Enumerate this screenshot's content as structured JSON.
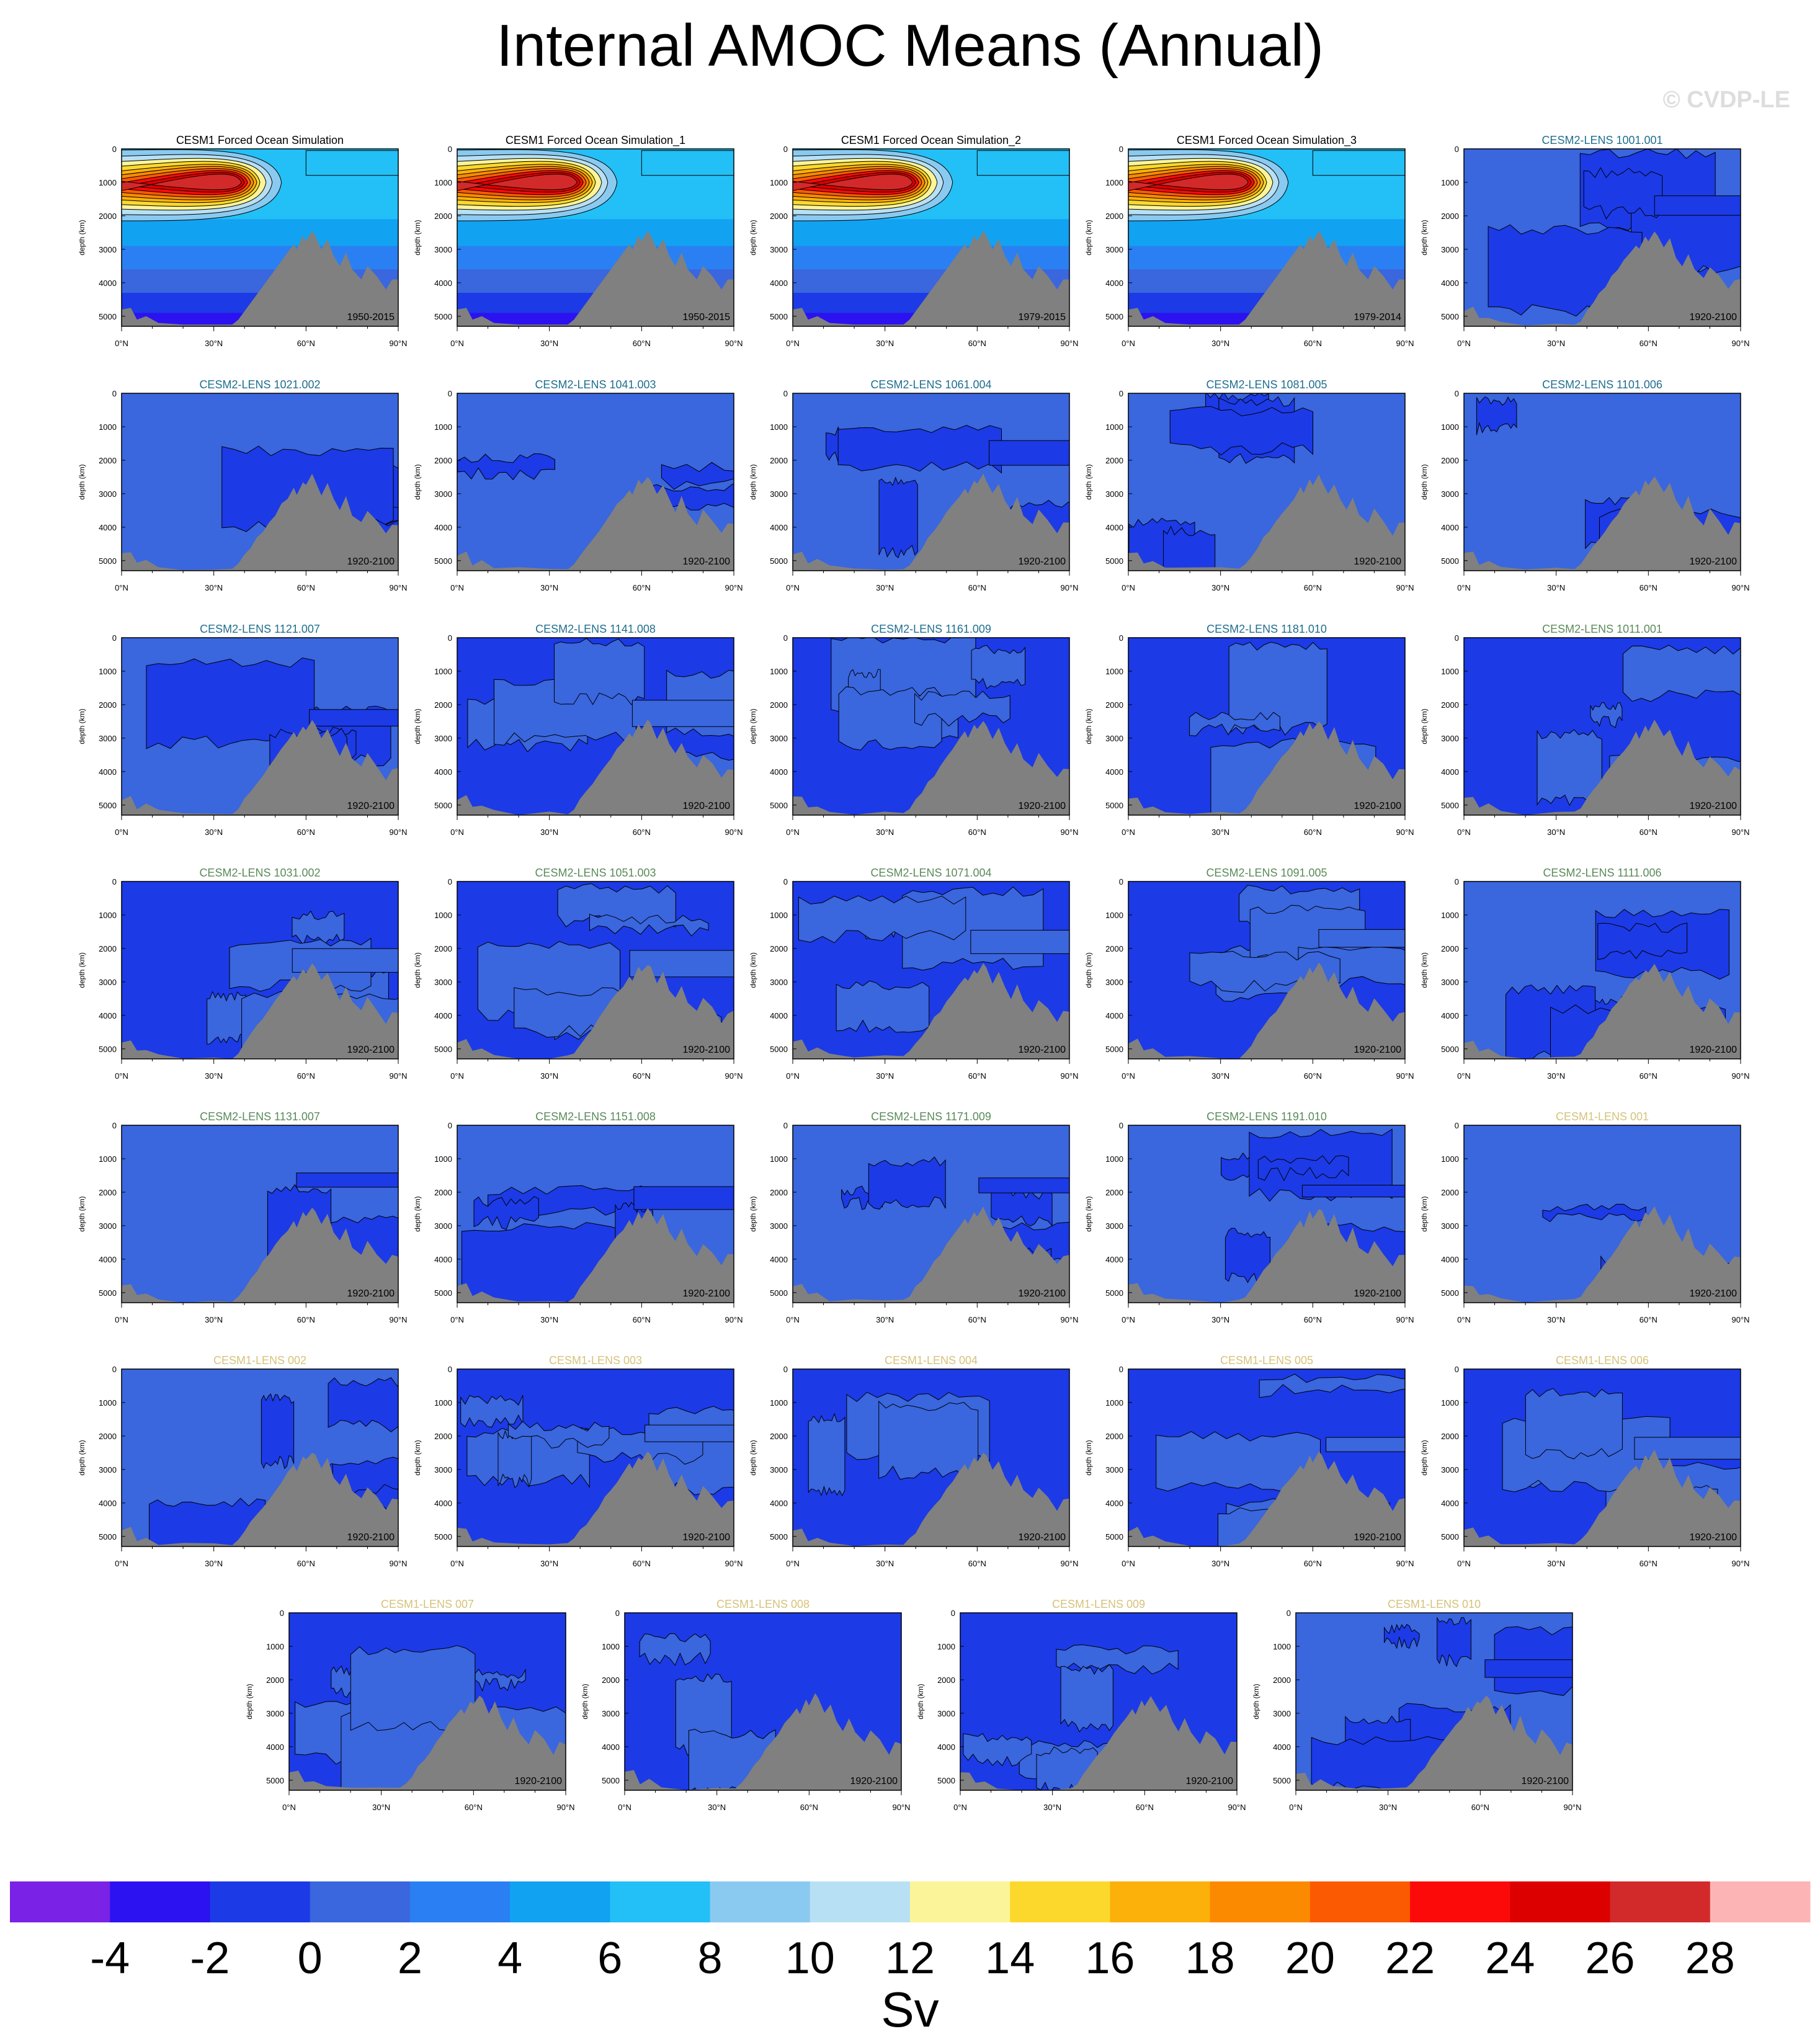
{
  "page": {
    "title": "Internal AMOC Means (Annual)",
    "watermark": "© CVDP-LE"
  },
  "colors": {
    "land": "#808080",
    "forced_title": "#000000",
    "cesm2_first": "#1f6e8e",
    "cesm2_second": "#5a8a5a",
    "cesm1_lens": "#d6c27a"
  },
  "chart_data": {
    "type": "heatmap",
    "axes": {
      "x_ticks": [
        "0°N",
        "30°N",
        "60°N",
        "90°N"
      ],
      "x_range": [
        0,
        90
      ],
      "y_ticks": [
        "0",
        "1000",
        "2000",
        "3000",
        "4000",
        "5000"
      ],
      "y_range": [
        0,
        5300
      ],
      "ylabel": "depth (km)"
    },
    "colorbar": {
      "unit": "Sv",
      "labels": [
        "-4",
        "-2",
        "0",
        "2",
        "4",
        "6",
        "8",
        "10",
        "12",
        "14",
        "16",
        "18",
        "20",
        "22",
        "24",
        "26",
        "28"
      ],
      "colors": [
        "#7a22e6",
        "#2c12f0",
        "#1c3ae6",
        "#3a66de",
        "#2a80f2",
        "#12a2f2",
        "#22c0f6",
        "#8acaf0",
        "#b8e0f4",
        "#fcf498",
        "#fcd82c",
        "#fcb00a",
        "#fc8a00",
        "#fc5a02",
        "#fc0a0a",
        "#dc0000",
        "#d22a2a",
        "#fcb4b4"
      ]
    },
    "panels": [
      {
        "title": "CESM1 Forced Ocean Simulation",
        "period": "1950-2015",
        "group": "forced"
      },
      {
        "title": "CESM1 Forced Ocean Simulation_1",
        "period": "1950-2015",
        "group": "forced"
      },
      {
        "title": "CESM1 Forced Ocean Simulation_2",
        "period": "1979-2015",
        "group": "forced"
      },
      {
        "title": "CESM1 Forced Ocean Simulation_3",
        "period": "1979-2014",
        "group": "forced"
      },
      {
        "title": "CESM2-LENS 1001.001",
        "period": "1920-2100",
        "group": "cesm2_first"
      },
      {
        "title": "CESM2-LENS 1021.002",
        "period": "1920-2100",
        "group": "cesm2_first"
      },
      {
        "title": "CESM2-LENS 1041.003",
        "period": "1920-2100",
        "group": "cesm2_first"
      },
      {
        "title": "CESM2-LENS 1061.004",
        "period": "1920-2100",
        "group": "cesm2_first"
      },
      {
        "title": "CESM2-LENS 1081.005",
        "period": "1920-2100",
        "group": "cesm2_first"
      },
      {
        "title": "CESM2-LENS 1101.006",
        "period": "1920-2100",
        "group": "cesm2_first"
      },
      {
        "title": "CESM2-LENS 1121.007",
        "period": "1920-2100",
        "group": "cesm2_first"
      },
      {
        "title": "CESM2-LENS 1141.008",
        "period": "1920-2100",
        "group": "cesm2_first"
      },
      {
        "title": "CESM2-LENS 1161.009",
        "period": "1920-2100",
        "group": "cesm2_first"
      },
      {
        "title": "CESM2-LENS 1181.010",
        "period": "1920-2100",
        "group": "cesm2_first"
      },
      {
        "title": "CESM2-LENS 1011.001",
        "period": "1920-2100",
        "group": "cesm2_second"
      },
      {
        "title": "CESM2-LENS 1031.002",
        "period": "1920-2100",
        "group": "cesm2_second"
      },
      {
        "title": "CESM2-LENS 1051.003",
        "period": "1920-2100",
        "group": "cesm2_second"
      },
      {
        "title": "CESM2-LENS 1071.004",
        "period": "1920-2100",
        "group": "cesm2_second"
      },
      {
        "title": "CESM2-LENS 1091.005",
        "period": "1920-2100",
        "group": "cesm2_second"
      },
      {
        "title": "CESM2-LENS 1111.006",
        "period": "1920-2100",
        "group": "cesm2_second"
      },
      {
        "title": "CESM2-LENS 1131.007",
        "period": "1920-2100",
        "group": "cesm2_second"
      },
      {
        "title": "CESM2-LENS 1151.008",
        "period": "1920-2100",
        "group": "cesm2_second"
      },
      {
        "title": "CESM2-LENS 1171.009",
        "period": "1920-2100",
        "group": "cesm2_second"
      },
      {
        "title": "CESM2-LENS 1191.010",
        "period": "1920-2100",
        "group": "cesm2_second"
      },
      {
        "title": "CESM1-LENS 001",
        "period": "1920-2100",
        "group": "cesm1_lens"
      },
      {
        "title": "CESM1-LENS 002",
        "period": "1920-2100",
        "group": "cesm1_lens"
      },
      {
        "title": "CESM1-LENS 003",
        "period": "1920-2100",
        "group": "cesm1_lens"
      },
      {
        "title": "CESM1-LENS 004",
        "period": "1920-2100",
        "group": "cesm1_lens"
      },
      {
        "title": "CESM1-LENS 005",
        "period": "1920-2100",
        "group": "cesm1_lens"
      },
      {
        "title": "CESM1-LENS 006",
        "period": "1920-2100",
        "group": "cesm1_lens"
      },
      {
        "title": "CESM1-LENS 007",
        "period": "1920-2100",
        "group": "cesm1_lens"
      },
      {
        "title": "CESM1-LENS 008",
        "period": "1920-2100",
        "group": "cesm1_lens"
      },
      {
        "title": "CESM1-LENS 009",
        "period": "1920-2100",
        "group": "cesm1_lens"
      },
      {
        "title": "CESM1-LENS 010",
        "period": "1920-2100",
        "group": "cesm1_lens"
      }
    ]
  }
}
